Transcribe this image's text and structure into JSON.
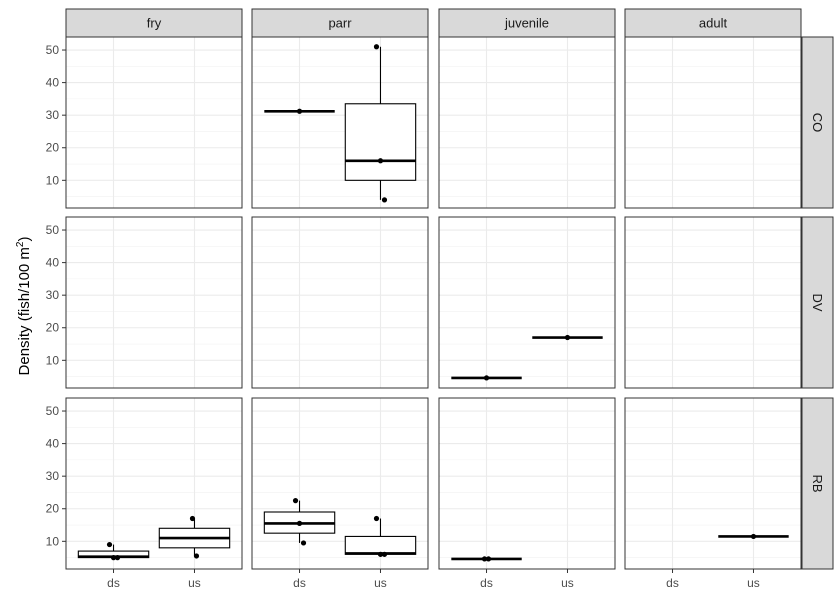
{
  "chart_data": {
    "type": "boxplot",
    "facet_cols": [
      "fry",
      "parr",
      "juvenile",
      "adult"
    ],
    "facet_rows": [
      "CO",
      "DV",
      "RB"
    ],
    "x_categories": [
      "ds",
      "us"
    ],
    "ylabel_main": "Density (fish/100 m",
    "ylabel_sup": "2",
    "ylabel_end": ")",
    "y_ticks": [
      10,
      20,
      30,
      40,
      50
    ],
    "ylim": [
      1.5,
      54
    ],
    "grid": true,
    "boxes": [
      {
        "row": "CO",
        "col": "parr",
        "x": "ds",
        "min": 31.2,
        "q1": 31.2,
        "median": 31.2,
        "q3": 31.2,
        "max": 31.2,
        "points": [
          31.2
        ]
      },
      {
        "row": "CO",
        "col": "parr",
        "x": "us",
        "min": 4,
        "q1": 10,
        "median": 16,
        "q3": 33.5,
        "max": 51,
        "points": [
          51,
          16,
          4
        ]
      },
      {
        "row": "DV",
        "col": "juvenile",
        "x": "ds",
        "min": 4.6,
        "q1": 4.6,
        "median": 4.6,
        "q3": 4.6,
        "max": 4.6,
        "points": [
          4.6
        ]
      },
      {
        "row": "DV",
        "col": "juvenile",
        "x": "us",
        "min": 17,
        "q1": 17,
        "median": 17,
        "q3": 17,
        "max": 17,
        "points": [
          17
        ]
      },
      {
        "row": "RB",
        "col": "fry",
        "x": "ds",
        "min": 5,
        "q1": 5,
        "median": 5.3,
        "q3": 7,
        "max": 9,
        "points": [
          9,
          5,
          5
        ]
      },
      {
        "row": "RB",
        "col": "fry",
        "x": "us",
        "min": 5.5,
        "q1": 8,
        "median": 11,
        "q3": 14,
        "max": 17,
        "points": [
          17,
          5.5
        ]
      },
      {
        "row": "RB",
        "col": "parr",
        "x": "ds",
        "min": 9.5,
        "q1": 12.5,
        "median": 15.5,
        "q3": 19,
        "max": 22.5,
        "points": [
          22.5,
          15.5,
          9.5
        ]
      },
      {
        "row": "RB",
        "col": "parr",
        "x": "us",
        "min": 6,
        "q1": 6,
        "median": 6.3,
        "q3": 11.5,
        "max": 17,
        "points": [
          17,
          6,
          6
        ]
      },
      {
        "row": "RB",
        "col": "juvenile",
        "x": "ds",
        "min": 4.6,
        "q1": 4.6,
        "median": 4.6,
        "q3": 4.6,
        "max": 4.6,
        "points": [
          4.6,
          4.6
        ]
      },
      {
        "row": "RB",
        "col": "adult",
        "x": "us",
        "min": 11.5,
        "q1": 11.5,
        "median": 11.5,
        "q3": 11.5,
        "max": 11.5,
        "points": [
          11.5
        ]
      }
    ]
  }
}
